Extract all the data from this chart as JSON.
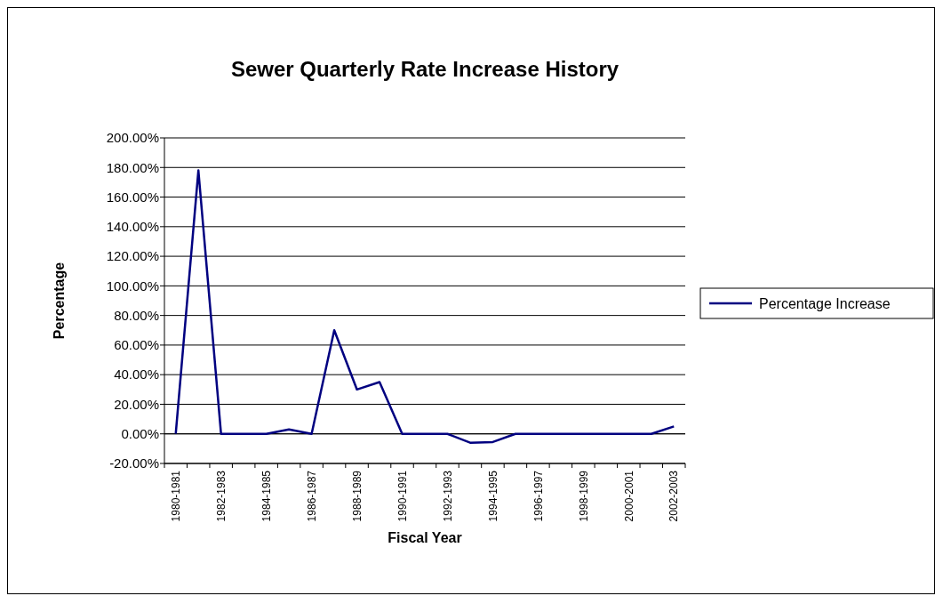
{
  "chart_data": {
    "type": "line",
    "title": "Sewer Quarterly Rate Increase History",
    "xlabel": "Fiscal Year",
    "ylabel": "Percentage",
    "categories": [
      "1980-1981",
      null,
      "1982-1983",
      null,
      "1984-1985",
      null,
      "1986-1987",
      null,
      "1988-1989",
      null,
      "1990-1991",
      null,
      "1992-1993",
      null,
      "1994-1995",
      null,
      "1996-1997",
      null,
      "1998-1999",
      null,
      "2000-2001",
      null,
      "2002-2003"
    ],
    "series": [
      {
        "name": "Percentage Increase",
        "color": "#000080",
        "values": [
          0,
          178,
          0,
          0,
          0,
          3,
          0,
          70,
          30,
          35,
          0,
          0,
          0,
          -6,
          -5.5,
          0,
          0,
          0,
          0,
          0,
          0,
          0,
          5
        ]
      }
    ],
    "ylim": [
      -20,
      200
    ],
    "yticks": [
      {
        "value": -20,
        "label": "-20.00%"
      },
      {
        "value": 0,
        "label": "0.00%"
      },
      {
        "value": 20,
        "label": "20.00%"
      },
      {
        "value": 40,
        "label": "40.00%"
      },
      {
        "value": 60,
        "label": "60.00%"
      },
      {
        "value": 80,
        "label": "80.00%"
      },
      {
        "value": 100,
        "label": "100.00%"
      },
      {
        "value": 120,
        "label": "120.00%"
      },
      {
        "value": 140,
        "label": "140.00%"
      },
      {
        "value": 160,
        "label": "160.00%"
      },
      {
        "value": 180,
        "label": "180.00%"
      },
      {
        "value": 200,
        "label": "200.00%"
      }
    ],
    "grid": "y",
    "legend": "right",
    "marker": "none",
    "line_style": "solid"
  }
}
